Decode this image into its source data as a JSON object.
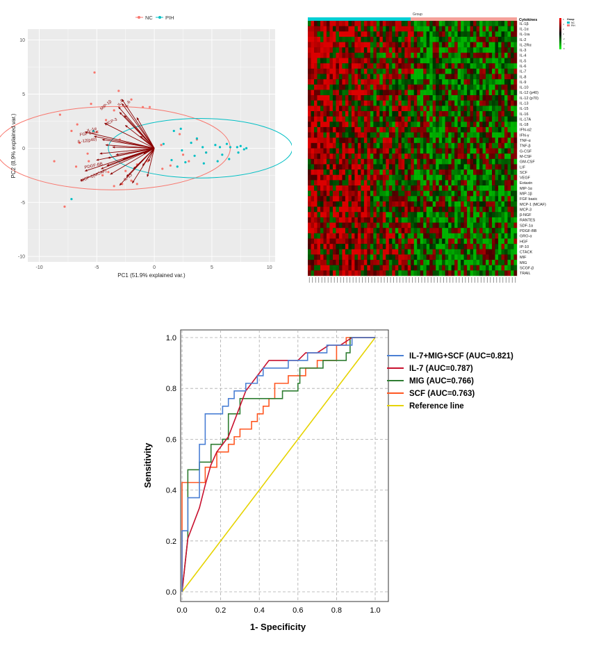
{
  "colors": {
    "nc": "#f8766d",
    "pih": "#00bfc4",
    "arrow": "#8b0000",
    "panel_bg": "#ebebeb"
  },
  "pca": {
    "legend": [
      "NC",
      "PIH"
    ],
    "xlabel": "PC1 (51.9% explained var.)",
    "ylabel": "PC2 (8.9% explained var.)",
    "xticks": [
      "-10",
      "-5",
      "0",
      "5",
      "10"
    ],
    "yticks": [
      "10",
      "5",
      "0",
      "-5",
      "-10"
    ],
    "vector_labels": [
      "MCP-3",
      "IL-12(p40)",
      "FGF basic",
      "IL-1α",
      "IL-13",
      "MCP-1(MCAF)",
      "PDGF-BB",
      "MIP-1β",
      "IL-8",
      "IL-6"
    ]
  },
  "heatmap": {
    "group_title": "Group",
    "cytokines_title": "Cytokines",
    "legend_title": "Group",
    "legend_items": [
      "NC",
      "PIH"
    ],
    "scale_ticks": [
      "6",
      "4",
      "2",
      "0",
      "-2",
      "-4",
      "-6"
    ],
    "cytokines": [
      "IL-1β",
      "IL-1α",
      "IL-1ra",
      "IL-2",
      "IL-2Rα",
      "IL-3",
      "IL-4",
      "IL-5",
      "IL-6",
      "IL-7",
      "IL-8",
      "IL-9",
      "IL-10",
      "IL-12 (p40)",
      "IL-12 (p70)",
      "IL-13",
      "IL-15",
      "IL-16",
      "IL-17A",
      "IL-18",
      "IFN-α2",
      "IFN-γ",
      "TNF-α",
      "TNF-β",
      "G-CSF",
      "M-CSF",
      "GM-CSF",
      "LIF",
      "SCF",
      "VEGF",
      "Eotaxin",
      "MIP-1α",
      "MIP-1β",
      "FGF basic",
      "MCP-1 (MCAF)",
      "MCP-3",
      "β-NGF",
      "RANTES",
      "SDF-1α",
      "PDGF-BB",
      "GRO-α",
      "HGF",
      "IP-10",
      "CTACK",
      "MIF",
      "MIG",
      "SCGF-β",
      "TRAIL"
    ]
  },
  "chart_data": [
    {
      "type": "scatter",
      "title": "",
      "xlabel": "PC1 (51.9% explained var.)",
      "ylabel": "PC2 (8.9% explained var.)",
      "xlim": [
        -11,
        10.5
      ],
      "ylim": [
        -10.5,
        11
      ],
      "series": [
        {
          "name": "NC",
          "points": [
            [
              -5.2,
              7
            ],
            [
              -3.1,
              5.3
            ],
            [
              -8.2,
              3.1
            ],
            [
              -5.5,
              4.1
            ],
            [
              -2,
              4.5
            ],
            [
              -1,
              3.8
            ],
            [
              -3.5,
              3.5
            ],
            [
              -6.7,
              2.2
            ],
            [
              -4.2,
              2.6
            ],
            [
              -7.2,
              1.6
            ],
            [
              -5,
              1.5
            ],
            [
              -6.5,
              0.5
            ],
            [
              -3,
              0.8
            ],
            [
              -5.8,
              -0.5
            ],
            [
              -8.7,
              -1.2
            ],
            [
              -6.8,
              -1.7
            ],
            [
              -5.7,
              -1.2
            ],
            [
              -4.5,
              -2.5
            ],
            [
              -3.5,
              -3.5
            ],
            [
              -2.5,
              -2.1
            ],
            [
              -1.5,
              -1.5
            ],
            [
              -0.6,
              -1.2
            ],
            [
              -4,
              -2.2
            ],
            [
              -2.8,
              -3.3
            ],
            [
              -2,
              -3
            ],
            [
              -1.5,
              -3.3
            ],
            [
              -7.8,
              -5.4
            ],
            [
              1.4,
              -1.6
            ],
            [
              0.7,
              -1.9
            ],
            [
              2.2,
              1.3
            ],
            [
              4.5,
              -0.4
            ],
            [
              3,
              -1.2
            ],
            [
              3.7,
              0.8
            ],
            [
              2.5,
              -0.6
            ],
            [
              0.6,
              0.3
            ],
            [
              -0.4,
              3.8
            ]
          ]
        },
        {
          "name": "PIH",
          "points": [
            [
              -7.2,
              -4.7
            ],
            [
              -5.3,
              1.6
            ],
            [
              1.7,
              1.6
            ],
            [
              2.3,
              1.8
            ],
            [
              3.7,
              0.9
            ],
            [
              2.4,
              -0.2
            ],
            [
              3.2,
              0.5
            ],
            [
              4.2,
              0.1
            ],
            [
              4.5,
              -0.4
            ],
            [
              5.3,
              0.3
            ],
            [
              5.7,
              0.1
            ],
            [
              6.3,
              0.4
            ],
            [
              6.6,
              0.1
            ],
            [
              7.2,
              0.1
            ],
            [
              7.5,
              0.2
            ],
            [
              7.8,
              -0.1
            ],
            [
              8,
              0
            ],
            [
              7.3,
              -0.4
            ],
            [
              5.9,
              -0.6
            ],
            [
              5.5,
              -1.2
            ],
            [
              4.3,
              -1.4
            ],
            [
              3.5,
              -0.7
            ],
            [
              2,
              -1.7
            ],
            [
              1.5,
              -1.1
            ],
            [
              0.8,
              0.4
            ],
            [
              2.7,
              -1.3
            ],
            [
              6.5,
              -1
            ]
          ]
        }
      ],
      "ellipses": [
        {
          "name": "NC",
          "center": [
            -3.6,
            0
          ],
          "radii": [
            10.2,
            3.85
          ]
        },
        {
          "name": "PIH",
          "center": [
            4,
            0
          ],
          "radii": [
            8,
            2.75
          ]
        }
      ],
      "vectors": [
        [
          -2.6,
          3
        ],
        [
          -2.8,
          4.5
        ],
        [
          -3,
          3.3
        ],
        [
          -4.3,
          2.3
        ],
        [
          -4.2,
          0.3
        ],
        [
          -4.7,
          -0.5
        ],
        [
          -4,
          -0.9
        ],
        [
          -4.1,
          -1.6
        ],
        [
          -6.4,
          -3
        ],
        [
          -6,
          -2.1
        ],
        [
          -3,
          -3.4
        ],
        [
          -1.9,
          -3.2
        ],
        [
          -3.1,
          3.8
        ],
        [
          -1.5,
          2.8
        ],
        [
          -2.8,
          4.1
        ],
        [
          -2.5,
          2.1
        ],
        [
          -6,
          1.5
        ],
        [
          -5.2,
          1.1
        ],
        [
          -4.5,
          0.8
        ],
        [
          -5,
          -1.1
        ],
        [
          -4.6,
          -1.9
        ],
        [
          -3.8,
          -2.4
        ],
        [
          -2.4,
          -2.6
        ],
        [
          -1.8,
          -1.9
        ],
        [
          -1,
          -1.6
        ],
        [
          -0.5,
          -1.2
        ],
        [
          -0.9,
          -0.5
        ],
        [
          -2.7,
          -1
        ],
        [
          -3.3,
          -0.6
        ],
        [
          -3.6,
          0.1
        ],
        [
          -1.2,
          1.1
        ],
        [
          -0.6,
          -2.6
        ]
      ]
    },
    {
      "type": "heatmap",
      "title": "",
      "rows": [
        "IL-1β",
        "IL-1α",
        "IL-1ra",
        "IL-2",
        "IL-2Rα",
        "IL-3",
        "IL-4",
        "IL-5",
        "IL-6",
        "IL-7",
        "IL-8",
        "IL-9",
        "IL-10",
        "IL-12 (p40)",
        "IL-12 (p70)",
        "IL-13",
        "IL-15",
        "IL-16",
        "IL-17A",
        "IL-18",
        "IFN-α2",
        "IFN-γ",
        "TNF-α",
        "TNF-β",
        "G-CSF",
        "M-CSF",
        "GM-CSF",
        "LIF",
        "SCF",
        "VEGF",
        "Eotaxin",
        "MIP-1α",
        "MIP-1β",
        "FGF basic",
        "MCP-1 (MCAF)",
        "MCP-3",
        "β-NGF",
        "RANTES",
        "SDF-1α",
        "PDGF-BB",
        "GRO-α",
        "HGF",
        "IP-10",
        "CTACK",
        "MIF",
        "MIG",
        "SCGF-β",
        "TRAIL"
      ],
      "group_sizes": {
        "PIH": 33,
        "NC": 34
      },
      "color_scale": [
        "#00cc00",
        "#000000",
        "#cc0000"
      ],
      "value_range": [
        -6,
        6
      ]
    },
    {
      "type": "line",
      "title": "",
      "xlabel": "1- Specificity",
      "ylabel": "Sensitivity",
      "xlim": [
        0,
        1
      ],
      "ylim": [
        0,
        1
      ],
      "xticks": [
        "0.0",
        "0.2",
        "0.4",
        "0.6",
        "0.8",
        "1.0"
      ],
      "yticks": [
        "0.0",
        "0.2",
        "0.4",
        "0.6",
        "0.8",
        "1.0"
      ],
      "grid": true,
      "legend_position": "right",
      "series": [
        {
          "name": "IL-7+MIG+SCF (AUC=0.821)",
          "color": "#4a7fd4",
          "x": [
            0,
            0,
            0.03,
            0.03,
            0.09,
            0.09,
            0.12,
            0.12,
            0.21,
            0.21,
            0.24,
            0.24,
            0.27,
            0.27,
            0.3,
            0.3,
            0.33,
            0.33,
            0.39,
            0.39,
            0.42,
            0.42,
            0.48,
            0.48,
            0.55,
            0.55,
            0.6,
            0.6,
            0.65,
            0.65,
            0.7,
            0.7,
            0.75,
            0.75,
            0.85,
            0.85,
            0.88,
            0.88,
            1
          ],
          "y": [
            0,
            0.24,
            0.24,
            0.37,
            0.37,
            0.58,
            0.58,
            0.7,
            0.7,
            0.73,
            0.73,
            0.76,
            0.76,
            0.79,
            0.79,
            0.79,
            0.79,
            0.82,
            0.82,
            0.85,
            0.85,
            0.88,
            0.88,
            0.88,
            0.88,
            0.91,
            0.91,
            0.91,
            0.91,
            0.94,
            0.94,
            0.94,
            0.94,
            0.97,
            0.97,
            0.97,
            0.97,
            1,
            1
          ]
        },
        {
          "name": "IL-7 (AUC=0.787)",
          "color": "#c8102e",
          "x": [
            0,
            0.03,
            0.06,
            0.09,
            0.12,
            0.15,
            0.18,
            0.21,
            0.24,
            0.27,
            0.3,
            0.33,
            0.36,
            0.39,
            0.42,
            0.45,
            0.5,
            0.55,
            0.6,
            0.64,
            0.7,
            0.76,
            0.82,
            0.88,
            1
          ],
          "y": [
            0,
            0.21,
            0.27,
            0.33,
            0.42,
            0.5,
            0.55,
            0.58,
            0.61,
            0.67,
            0.73,
            0.79,
            0.82,
            0.85,
            0.88,
            0.91,
            0.91,
            0.91,
            0.91,
            0.94,
            0.94,
            0.97,
            0.97,
            1,
            1
          ]
        },
        {
          "name": "MIG (AUC=0.766)",
          "color": "#2e7d32",
          "x": [
            0,
            0.03,
            0.03,
            0.09,
            0.09,
            0.15,
            0.15,
            0.21,
            0.21,
            0.24,
            0.24,
            0.3,
            0.3,
            0.36,
            0.36,
            0.52,
            0.52,
            0.6,
            0.6,
            0.61,
            0.61,
            0.73,
            0.73,
            0.85,
            0.85,
            0.87,
            0.87,
            1
          ],
          "y": [
            0,
            0.21,
            0.48,
            0.48,
            0.51,
            0.51,
            0.58,
            0.58,
            0.6,
            0.6,
            0.7,
            0.7,
            0.76,
            0.76,
            0.76,
            0.76,
            0.79,
            0.79,
            0.82,
            0.82,
            0.88,
            0.88,
            0.91,
            0.91,
            0.94,
            0.94,
            1,
            1
          ]
        },
        {
          "name": "SCF (AUC=0.763)",
          "color": "#ff5722",
          "x": [
            0,
            0,
            0.12,
            0.12,
            0.18,
            0.18,
            0.24,
            0.24,
            0.27,
            0.27,
            0.3,
            0.3,
            0.36,
            0.36,
            0.39,
            0.39,
            0.42,
            0.42,
            0.45,
            0.45,
            0.48,
            0.48,
            0.55,
            0.55,
            0.64,
            0.64,
            0.7,
            0.7,
            0.8,
            0.8,
            0.85,
            0.85,
            1
          ],
          "y": [
            0,
            0.43,
            0.43,
            0.49,
            0.49,
            0.55,
            0.55,
            0.58,
            0.58,
            0.61,
            0.61,
            0.64,
            0.64,
            0.67,
            0.67,
            0.7,
            0.7,
            0.73,
            0.73,
            0.76,
            0.76,
            0.82,
            0.82,
            0.85,
            0.85,
            0.88,
            0.88,
            0.91,
            0.91,
            0.97,
            0.97,
            1,
            1
          ]
        },
        {
          "name": "Reference line",
          "color": "#e6d300",
          "x": [
            0,
            1
          ],
          "y": [
            0,
            1
          ]
        }
      ]
    }
  ]
}
